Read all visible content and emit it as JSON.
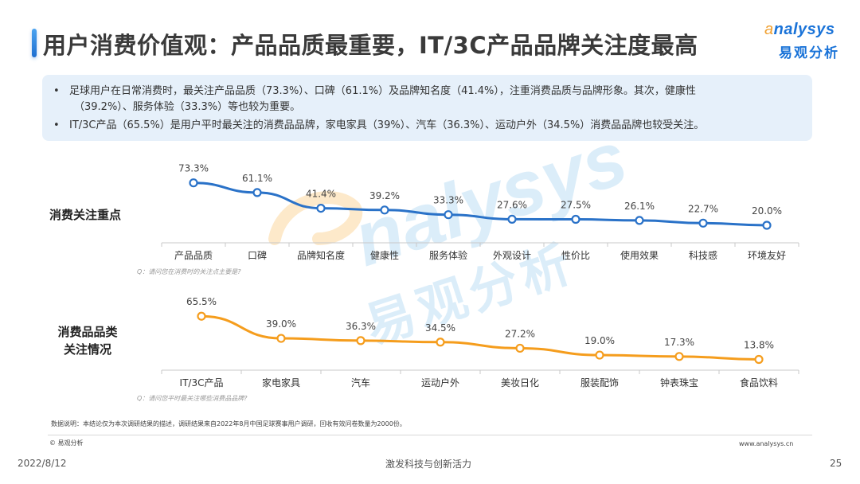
{
  "header": {
    "title": "用户消费价值观：产品品质最重要，IT/3C产品品牌关注度最高",
    "logo_en": "nalysys",
    "logo_en_prefix": "a",
    "logo_cn": "易观分析",
    "accent_color": "#1f6fd0"
  },
  "summary": {
    "bullets": [
      {
        "marker": "•",
        "line1": "足球用户在日常消费时，最关注产品品质（73.3%）、口碑（61.1%）及品牌知名度（41.4%），注重消费品质与品牌形象。其次，健康性",
        "line2": "（39.2%）、服务体验（33.3%）等也较为重要。"
      },
      {
        "marker": "•",
        "line1": "IT/3C产品（65.5%）是用户平时最关注的消费品品牌，家电家具（39%）、汽车（36.3%）、运动户外（34.5%）消费品品牌也较受关注。"
      }
    ]
  },
  "charts": {
    "focus": {
      "row_label": "消费关注重点",
      "question": "Q：请问您在消费时的关注点主要是?",
      "color": "#2a72c8"
    },
    "category": {
      "row_label_line1": "消费品品类",
      "row_label_line2": "关注情况",
      "question": "Q：请问您平时最关注哪些消费品品牌?",
      "color": "#f59d1d"
    }
  },
  "chart_data": [
    {
      "type": "line",
      "title": "消费关注重点",
      "categories": [
        "产品品质",
        "口碑",
        "品牌知名度",
        "健康性",
        "服务体验",
        "外观设计",
        "性价比",
        "使用效果",
        "科技感",
        "环境友好"
      ],
      "values": [
        73.3,
        61.1,
        41.4,
        39.2,
        33.3,
        27.6,
        27.5,
        26.1,
        22.7,
        20.0
      ],
      "labels": [
        "73.3%",
        "61.1%",
        "41.4%",
        "39.2%",
        "33.3%",
        "27.6%",
        "27.5%",
        "26.1%",
        "22.7%",
        "20.0%"
      ],
      "xlabel": "",
      "ylabel": "",
      "unit": "%",
      "grid": false,
      "legend": "none",
      "note": "Q：请问您在消费时的关注点主要是?"
    },
    {
      "type": "line",
      "title": "消费品品类关注情况",
      "categories": [
        "IT/3C产品",
        "家电家具",
        "汽车",
        "运动户外",
        "美妆日化",
        "服装配饰",
        "钟表珠宝",
        "食品饮料"
      ],
      "values": [
        65.5,
        39.0,
        36.3,
        34.5,
        27.2,
        19.0,
        17.3,
        13.8
      ],
      "labels": [
        "65.5%",
        "39.0%",
        "36.3%",
        "34.5%",
        "27.2%",
        "19.0%",
        "17.3%",
        "13.8%"
      ],
      "xlabel": "",
      "ylabel": "",
      "unit": "%",
      "grid": false,
      "legend": "none",
      "note": "Q：请问您平时最关注哪些消费品品牌?"
    }
  ],
  "watermark": {
    "en": "nalysys",
    "cn": "易观分析"
  },
  "footer": {
    "data_note": "数据说明：本结论仅为本次调研结果的描述，调研结果来自2022年8月中国足球赛事用户调研，回收有效问卷数量为2000份。",
    "copyright": "© 易观分析",
    "site": "www.analysys.cn",
    "date": "2022/8/12",
    "slogan": "激发科技与创新活力",
    "page_number": "25"
  }
}
